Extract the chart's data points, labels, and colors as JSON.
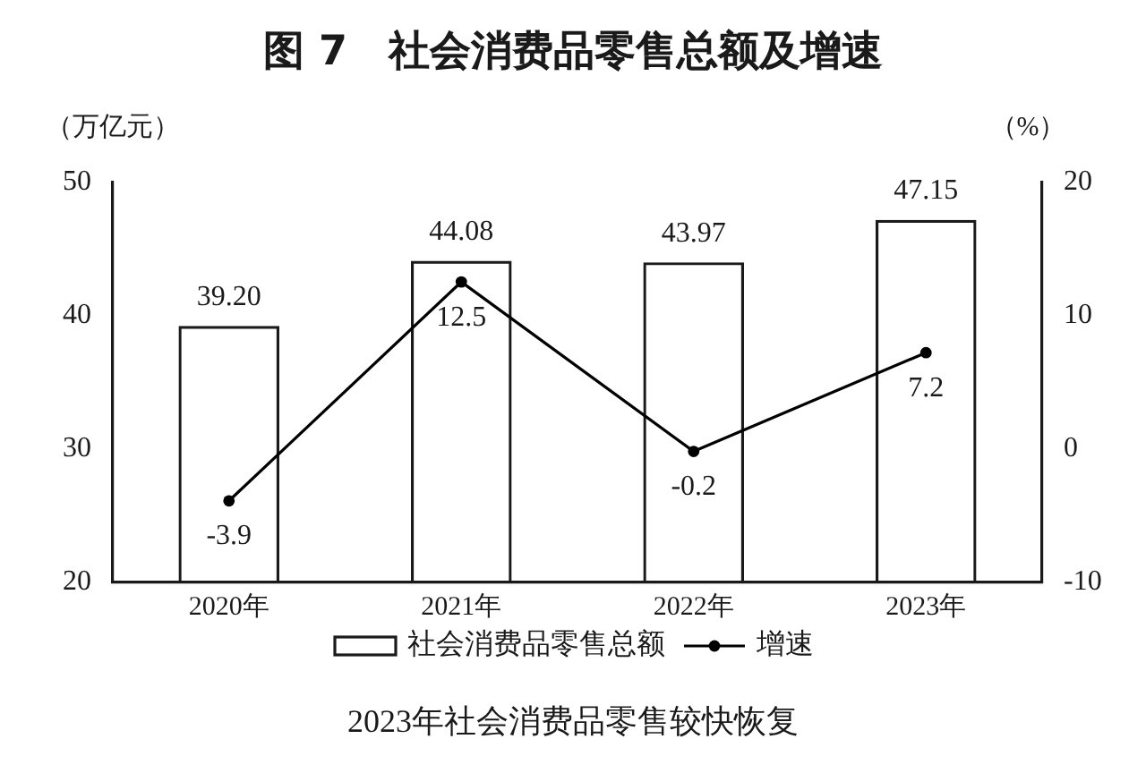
{
  "chart_data": {
    "type": "bar",
    "title": "图 7　社会消费品零售总额及增速",
    "ylabel": "（万亿元）",
    "y2label": "（%）",
    "categories": [
      "2020年",
      "2021年",
      "2022年",
      "2023年"
    ],
    "series": [
      {
        "name": "社会消费品零售总额",
        "color": "#1a1a1a",
        "values": [
          39.2,
          44.08,
          43.97,
          47.15
        ],
        "value_labels": [
          "39.20",
          "44.08",
          "43.97",
          "47.15"
        ]
      },
      {
        "name": "增速",
        "type": "line",
        "axis": "y2",
        "color": "#000000",
        "values": [
          -3.9,
          12.5,
          -0.2,
          7.2
        ],
        "value_labels": [
          "-3.9",
          "12.5",
          "-0.2",
          "7.2"
        ]
      }
    ],
    "ylim": [
      20,
      50
    ],
    "yticks": [
      20,
      30,
      40,
      50
    ],
    "y2lim": [
      -10,
      20
    ],
    "y2ticks": [
      -10,
      0,
      10,
      20
    ],
    "grid": false,
    "legend": "bottom",
    "marker": "circle",
    "annotations": [
      "2023年社会消费品零售较快恢复"
    ]
  }
}
